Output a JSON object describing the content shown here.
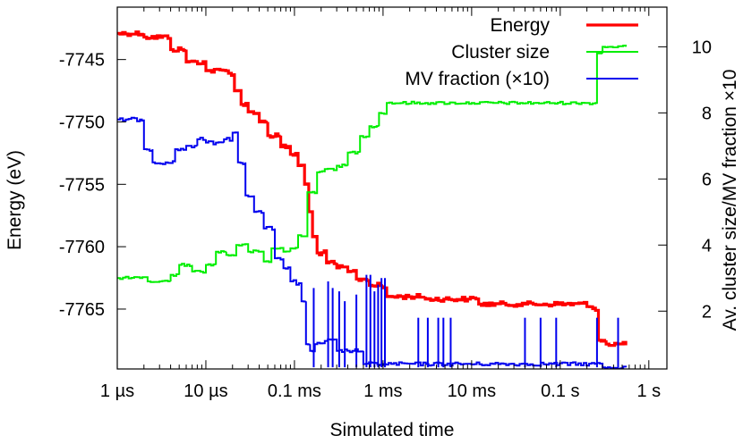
{
  "chart_data": {
    "type": "line",
    "title": "",
    "xlabel": "Simulated time",
    "ylabel_left": "Energy (eV)",
    "ylabel_right": "Av. cluster size/MV fraction ×10",
    "x_scale": "log",
    "x_unit": "s",
    "xlim": [
      1e-06,
      1.6
    ],
    "ylim_left": [
      -7769.8,
      -7740.8
    ],
    "ylim_right": [
      0.25,
      11.2
    ],
    "x_ticks": [
      {
        "value": 1e-06,
        "label": "1 µs"
      },
      {
        "value": 1e-05,
        "label": "10 µs"
      },
      {
        "value": 0.0001,
        "label": "0.1 ms"
      },
      {
        "value": 0.001,
        "label": "1 ms"
      },
      {
        "value": 0.01,
        "label": "10 ms"
      },
      {
        "value": 0.1,
        "label": "0.1 s"
      },
      {
        "value": 1,
        "label": "1 s"
      }
    ],
    "y_ticks_left": [
      {
        "value": -7745,
        "label": "-7745"
      },
      {
        "value": -7750,
        "label": "-7750"
      },
      {
        "value": -7755,
        "label": "-7755"
      },
      {
        "value": -7760,
        "label": "-7760"
      },
      {
        "value": -7765,
        "label": "-7765"
      }
    ],
    "y_ticks_right": [
      {
        "value": 2,
        "label": "2"
      },
      {
        "value": 4,
        "label": "4"
      },
      {
        "value": 6,
        "label": "6"
      },
      {
        "value": 8,
        "label": "8"
      },
      {
        "value": 10,
        "label": "10"
      }
    ],
    "legend_position": "top-right",
    "series": [
      {
        "name": "Energy",
        "axis": "left",
        "color": "#ff0000",
        "points": [
          [
            1e-06,
            -7742.9
          ],
          [
            2e-06,
            -7743.2
          ],
          [
            4e-06,
            -7744.2
          ],
          [
            6e-06,
            -7745.2
          ],
          [
            1e-05,
            -7745.9
          ],
          [
            1.8e-05,
            -7746.1
          ],
          [
            2.1e-05,
            -7747.5
          ],
          [
            2.5e-05,
            -7748.6
          ],
          [
            3e-05,
            -7749.2
          ],
          [
            4e-05,
            -7750.0
          ],
          [
            5e-05,
            -7751.1
          ],
          [
            7e-05,
            -7752.0
          ],
          [
            9e-05,
            -7752.6
          ],
          [
            0.00011,
            -7753.5
          ],
          [
            0.00013,
            -7755.0
          ],
          [
            0.000145,
            -7757.2
          ],
          [
            0.00016,
            -7759.2
          ],
          [
            0.00018,
            -7760.5
          ],
          [
            0.00023,
            -7761.3
          ],
          [
            0.0003,
            -7761.7
          ],
          [
            0.0004,
            -7762.0
          ],
          [
            0.0005,
            -7762.6
          ],
          [
            0.0007,
            -7763.1
          ],
          [
            0.001,
            -7763.3
          ],
          [
            0.0011,
            -7764.0
          ],
          [
            0.003,
            -7764.2
          ],
          [
            0.009,
            -7764.2
          ],
          [
            0.012,
            -7764.6
          ],
          [
            0.04,
            -7764.6
          ],
          [
            0.2,
            -7764.8
          ],
          [
            0.25,
            -7765.1
          ],
          [
            0.27,
            -7767.5
          ],
          [
            0.33,
            -7767.8
          ],
          [
            0.55,
            -7767.9
          ]
        ]
      },
      {
        "name": "Cluster size",
        "axis": "right",
        "color": "#00ee00",
        "points": [
          [
            1e-06,
            3.0
          ],
          [
            1.8e-06,
            3.0
          ],
          [
            2.2e-06,
            2.9
          ],
          [
            3e-06,
            2.9
          ],
          [
            4e-06,
            3.1
          ],
          [
            5e-06,
            3.4
          ],
          [
            7e-06,
            3.2
          ],
          [
            1e-05,
            3.4
          ],
          [
            1.3e-05,
            3.8
          ],
          [
            1.7e-05,
            3.7
          ],
          [
            2.2e-05,
            4.0
          ],
          [
            3e-05,
            3.8
          ],
          [
            4.5e-05,
            3.5
          ],
          [
            5.5e-05,
            3.9
          ],
          [
            7.5e-05,
            3.8
          ],
          [
            9e-05,
            3.9
          ],
          [
            0.00011,
            4.3
          ],
          [
            0.00014,
            5.6
          ],
          [
            0.00018,
            6.2
          ],
          [
            0.00022,
            6.3
          ],
          [
            0.0003,
            6.4
          ],
          [
            0.0004,
            6.8
          ],
          [
            0.00055,
            7.3
          ],
          [
            0.0007,
            7.6
          ],
          [
            0.0009,
            8.0
          ],
          [
            0.0011,
            8.3
          ],
          [
            0.003,
            8.3
          ],
          [
            0.01,
            8.3
          ],
          [
            0.05,
            8.3
          ],
          [
            0.2,
            8.3
          ],
          [
            0.25,
            8.3
          ],
          [
            0.26,
            9.8
          ],
          [
            0.3,
            10.0
          ],
          [
            0.55,
            10.0
          ]
        ]
      },
      {
        "name": "MV fraction (×10)",
        "axis": "right",
        "color": "#0000ee",
        "points": [
          [
            1e-06,
            7.8
          ],
          [
            1.8e-06,
            7.8
          ],
          [
            2e-06,
            6.9
          ],
          [
            2.5e-06,
            6.5
          ],
          [
            3.5e-06,
            6.5
          ],
          [
            4.5e-06,
            6.9
          ],
          [
            6e-06,
            7.0
          ],
          [
            8e-06,
            7.2
          ],
          [
            1e-05,
            7.1
          ],
          [
            1.3e-05,
            7.1
          ],
          [
            1.6e-05,
            7.2
          ],
          [
            2e-05,
            7.4
          ],
          [
            2.3e-05,
            6.5
          ],
          [
            2.8e-05,
            5.5
          ],
          [
            3.5e-05,
            5.0
          ],
          [
            4.5e-05,
            4.5
          ],
          [
            6e-05,
            3.6
          ],
          [
            7.5e-05,
            3.3
          ],
          [
            9e-05,
            2.9
          ],
          [
            0.000105,
            2.8
          ],
          [
            0.00012,
            2.3
          ],
          [
            0.000135,
            1.0
          ],
          [
            0.00015,
            0.8
          ],
          [
            0.00017,
            1.0
          ],
          [
            0.00022,
            1.1
          ],
          [
            0.0003,
            0.8
          ],
          [
            0.00045,
            0.8
          ],
          [
            0.0006,
            0.4
          ],
          [
            0.001,
            0.4
          ],
          [
            0.3,
            0.3
          ],
          [
            0.55,
            0.3
          ]
        ],
        "spikes": [
          [
            0.000165,
            2.7
          ],
          [
            0.00024,
            2.9
          ],
          [
            0.00027,
            2.7
          ],
          [
            0.00032,
            2.6
          ],
          [
            0.00037,
            2.3
          ],
          [
            0.0005,
            2.5
          ],
          [
            0.00065,
            3.1
          ],
          [
            0.00072,
            3.1
          ],
          [
            0.0008,
            2.6
          ],
          [
            0.00088,
            2.8
          ],
          [
            0.00096,
            3.0
          ],
          [
            0.00105,
            3.0
          ],
          [
            0.0025,
            1.8
          ],
          [
            0.0032,
            1.8
          ],
          [
            0.0042,
            1.8
          ],
          [
            0.0048,
            1.8
          ],
          [
            0.0058,
            1.8
          ],
          [
            0.04,
            1.8
          ],
          [
            0.06,
            1.8
          ],
          [
            0.09,
            1.8
          ],
          [
            0.26,
            1.8
          ],
          [
            0.45,
            1.8
          ]
        ]
      }
    ]
  }
}
